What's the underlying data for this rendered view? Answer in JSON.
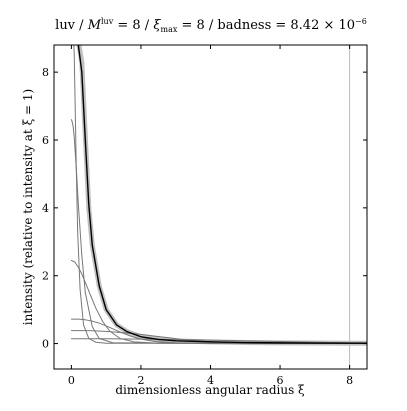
{
  "chart_data": {
    "type": "line",
    "title": {
      "prefix": "luv / ",
      "m_symbol": "M",
      "m_sup": "luv",
      "m_value": " = 8 / ",
      "xi_symbol": "ξ",
      "xi_sub": "max",
      "xi_value": " = 8 / badness = 8.42 × 10",
      "exponent": "−6"
    },
    "xlabel": "dimensionless angular radius ξ",
    "ylabel": "intensity (relative to intensity at ξ = 1)",
    "xlim": [
      -0.5,
      8.5
    ],
    "ylim": [
      -0.75,
      8.8
    ],
    "xticks": [
      0,
      2,
      4,
      6,
      8
    ],
    "yticks": [
      0,
      2,
      4,
      6,
      8
    ],
    "xtick_labels": [
      "0",
      "2",
      "4",
      "6",
      "8"
    ],
    "ytick_labels": [
      "0",
      "2",
      "4",
      "6",
      "8"
    ],
    "grid": false,
    "legend": "none",
    "vertical_line": {
      "x": 8,
      "color": "#bbbbbb"
    },
    "colors": {
      "target": "#c0c0c0",
      "component": "#777777",
      "sum": "#000000"
    },
    "series": [
      {
        "role": "target",
        "x": [
          0.04,
          0.1,
          0.2,
          0.3,
          0.4,
          0.5,
          0.6,
          0.8,
          1.0,
          1.3,
          1.6,
          2.0,
          2.5,
          3,
          4,
          5,
          6,
          7,
          8,
          8.5
        ],
        "y": [
          9.2,
          9.1,
          8.9,
          8.3,
          6.1,
          4.0,
          2.9,
          1.7,
          1.0,
          0.55,
          0.35,
          0.2,
          0.12,
          0.08,
          0.05,
          0.03,
          0.02,
          0.015,
          0.01,
          0.01
        ]
      },
      {
        "role": "sum",
        "x": [
          0.04,
          0.1,
          0.2,
          0.3,
          0.4,
          0.5,
          0.6,
          0.8,
          1.0,
          1.3,
          1.6,
          2.0,
          2.5,
          3,
          4,
          5,
          6,
          7,
          8,
          8.5
        ],
        "y": [
          9.2,
          9.1,
          8.8,
          8.0,
          6.0,
          4.1,
          2.9,
          1.7,
          1.0,
          0.55,
          0.35,
          0.2,
          0.12,
          0.08,
          0.05,
          0.03,
          0.02,
          0.015,
          0.01,
          0.01
        ]
      },
      {
        "role": "component",
        "x": [
          0.0,
          0.02,
          0.05,
          0.08,
          0.1,
          0.14,
          0.18,
          0.25,
          0.35,
          0.5,
          0.7,
          1.0,
          8.5
        ],
        "y": [
          9.2,
          9.2,
          9.1,
          8.6,
          7.5,
          5.2,
          3.3,
          1.6,
          0.55,
          0.15,
          0.04,
          0.01,
          0.0
        ]
      },
      {
        "role": "component",
        "x": [
          0.0,
          0.02,
          0.05,
          0.08,
          0.1,
          0.15,
          0.2,
          0.3,
          0.4,
          0.6,
          0.8,
          1.2,
          8.5
        ],
        "y": [
          6.6,
          6.55,
          6.4,
          6.1,
          5.8,
          5.0,
          4.1,
          2.6,
          1.5,
          0.5,
          0.15,
          0.02,
          0.0
        ]
      },
      {
        "role": "component",
        "x": [
          0.0,
          0.1,
          0.2,
          0.3,
          0.4,
          0.5,
          0.6,
          0.7,
          0.9,
          1.1,
          1.4,
          1.8,
          2.5,
          8.5
        ],
        "y": [
          2.45,
          2.4,
          2.25,
          2.05,
          1.8,
          1.55,
          1.3,
          1.05,
          0.65,
          0.37,
          0.15,
          0.05,
          0.01,
          0.0
        ]
      },
      {
        "role": "component",
        "x": [
          0.0,
          0.2,
          0.4,
          0.6,
          0.8,
          1.0,
          1.2,
          1.4,
          1.7,
          2.0,
          2.4,
          3.0,
          4.0,
          8.5
        ],
        "y": [
          0.72,
          0.72,
          0.7,
          0.66,
          0.6,
          0.52,
          0.43,
          0.34,
          0.22,
          0.13,
          0.06,
          0.02,
          0.0,
          0.0
        ]
      },
      {
        "role": "component",
        "x": [
          0.0,
          0.5,
          1.0,
          1.5,
          2.0,
          2.4,
          2.8,
          3.2,
          3.6,
          4.0,
          4.5,
          5.0,
          6.0,
          8.5
        ],
        "y": [
          0.38,
          0.38,
          0.36,
          0.32,
          0.27,
          0.22,
          0.17,
          0.12,
          0.08,
          0.05,
          0.025,
          0.01,
          0.0,
          0.0
        ]
      },
      {
        "role": "component",
        "x": [
          0.0,
          1.0,
          2.0,
          3.0,
          4.0,
          5.0,
          6.0,
          7.0,
          8.0,
          8.5
        ],
        "y": [
          0.14,
          0.14,
          0.13,
          0.12,
          0.1,
          0.08,
          0.06,
          0.04,
          0.025,
          0.02
        ]
      }
    ]
  }
}
